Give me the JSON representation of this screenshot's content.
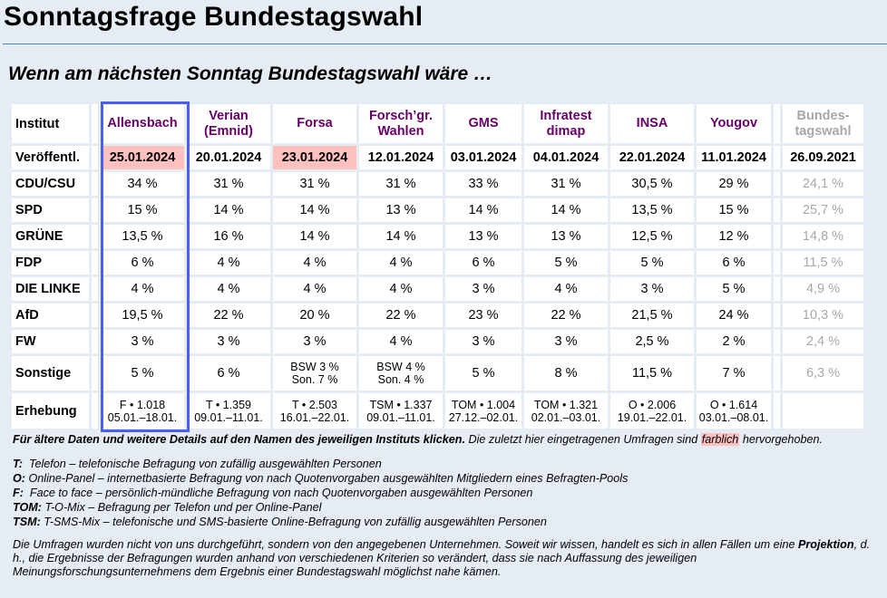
{
  "page": {
    "title": "Sonntagsfrage Bundestagswahl",
    "subtitle": "Wenn am nächsten Sonntag Bundestagswahl wäre …"
  },
  "colors": {
    "background": "#e6ecf4",
    "institute_link": "#660066",
    "highlight": "#ffc0c0",
    "selected_border": "#4a5ef0",
    "muted": "#a8a8a8",
    "rule": "#4a86b0"
  },
  "table": {
    "row_labels": {
      "institute": "Institut",
      "published": "Veröffentl.",
      "survey": "Erhebung"
    },
    "parties": [
      "CDU/CSU",
      "SPD",
      "GRÜNE",
      "FDP",
      "DIE LINKE",
      "AfD",
      "FW",
      "Sonstige"
    ],
    "institutes": [
      {
        "name_line1": "Allensbach",
        "name_line2": "",
        "published": "25.01.2024",
        "highlighted": true,
        "selected": true,
        "values": [
          "34 %",
          "15 %",
          "13,5 %",
          "6 %",
          "4 %",
          "19,5 %",
          "3 %"
        ],
        "sonstige_line1": "5 %",
        "sonstige_line2": "",
        "survey_line1": "F • 1.018",
        "survey_line2": "05.01.–18.01."
      },
      {
        "name_line1": "Verian",
        "name_line2": "(Emnid)",
        "published": "20.01.2024",
        "highlighted": false,
        "values": [
          "31 %",
          "14 %",
          "16 %",
          "4 %",
          "4 %",
          "22 %",
          "3 %"
        ],
        "sonstige_line1": "6 %",
        "sonstige_line2": "",
        "survey_line1": "T • 1.359",
        "survey_line2": "09.01.–11.01."
      },
      {
        "name_line1": "Forsa",
        "name_line2": "",
        "published": "23.01.2024",
        "highlighted": true,
        "values": [
          "31 %",
          "14 %",
          "14 %",
          "4 %",
          "4 %",
          "20 %",
          "3 %"
        ],
        "sonstige_line1": "BSW 3 %",
        "sonstige_line2": "Son. 7 %",
        "survey_line1": "T • 2.503",
        "survey_line2": "16.01.–22.01."
      },
      {
        "name_line1": "Forsch’gr.",
        "name_line2": "Wahlen",
        "published": "12.01.2024",
        "highlighted": false,
        "values": [
          "31 %",
          "13 %",
          "14 %",
          "4 %",
          "4 %",
          "22 %",
          "4 %"
        ],
        "sonstige_line1": "BSW 4 %",
        "sonstige_line2": "Son. 4 %",
        "survey_line1": "TSM • 1.337",
        "survey_line2": "09.01.–11.01."
      },
      {
        "name_line1": "GMS",
        "name_line2": "",
        "published": "03.01.2024",
        "highlighted": false,
        "values": [
          "33 %",
          "14 %",
          "13 %",
          "6 %",
          "3 %",
          "23 %",
          "3 %"
        ],
        "sonstige_line1": "5 %",
        "sonstige_line2": "",
        "survey_line1": "TOM • 1.004",
        "survey_line2": "27.12.–02.01."
      },
      {
        "name_line1": "Infratest",
        "name_line2": "dimap",
        "published": "04.01.2024",
        "highlighted": false,
        "values": [
          "31 %",
          "14 %",
          "13 %",
          "5 %",
          "4 %",
          "22 %",
          "3 %"
        ],
        "sonstige_line1": "8 %",
        "sonstige_line2": "",
        "survey_line1": "TOM • 1.321",
        "survey_line2": "02.01.–03.01."
      },
      {
        "name_line1": "INSA",
        "name_line2": "",
        "published": "22.01.2024",
        "highlighted": false,
        "values": [
          "30,5 %",
          "13,5 %",
          "12,5 %",
          "5 %",
          "3 %",
          "21,5 %",
          "2,5 %"
        ],
        "sonstige_line1": "11,5 %",
        "sonstige_line2": "",
        "survey_line1": "O • 2.006",
        "survey_line2": "19.01.–22.01."
      },
      {
        "name_line1": "Yougov",
        "name_line2": "",
        "published": "11.01.2024",
        "highlighted": false,
        "values": [
          "29 %",
          "15 %",
          "12 %",
          "6 %",
          "5 %",
          "24 %",
          "2 %"
        ],
        "sonstige_line1": "7 %",
        "sonstige_line2": "",
        "survey_line1": "O • 1.614",
        "survey_line2": "03.01.–08.01."
      }
    ],
    "election": {
      "name_line1": "Bundes-",
      "name_line2": "tagswahl",
      "published": "26.09.2021",
      "values": [
        "24,1 %",
        "25,7 %",
        "14,8 %",
        "11,5 %",
        "4,9 %",
        "10,3 %",
        "2,4 %",
        "6,3 %"
      ]
    }
  },
  "notes": {
    "intro_bold": "Für ältere Daten und weitere Details auf den Namen des jeweiligen Instituts klicken.",
    "intro_rest": " Die zuletzt hier eingetragenen Umfragen sind ",
    "intro_mark": "farblich",
    "intro_end": " hervorgehoben.",
    "legend": [
      {
        "code": "T:",
        "text": "  Telefon – telefonische Befragung von zufällig ausgewählten Personen"
      },
      {
        "code": "O:",
        "text": " Online-Panel – internetbasierte Befragung von nach Quotenvorgaben ausgewählten Mitgliedern eines Befragten-Pools"
      },
      {
        "code": "F:",
        "text": "  Face to face – persönlich-mündliche Befragung von nach Quotenvorgaben ausgewählten Personen"
      },
      {
        "code": "TOM:",
        "text": " T-O-Mix – Befragung per Telefon und per Online-Panel"
      },
      {
        "code": "TSM:",
        "text": " T-SMS-Mix – telefonische und SMS-basierte Online-Befragung von zufällig ausgewählten Personen"
      }
    ],
    "disclaimer_start": "Die Umfragen wurden nicht von uns durchgeführt, sondern von den angegebenen Unternehmen. Soweit wir wissen, handelt es sich in allen Fällen um eine ",
    "disclaimer_bold": "Projektion",
    "disclaimer_end": ", d. h., die Ergebnisse der Befragungen wurden anhand von verschiedenen Kriterien so verändert, dass sie nach Auffassung des jeweiligen Meinungsforschungsunternehmens dem Ergebnis einer Bundestagswahl möglichst nahe kämen."
  }
}
